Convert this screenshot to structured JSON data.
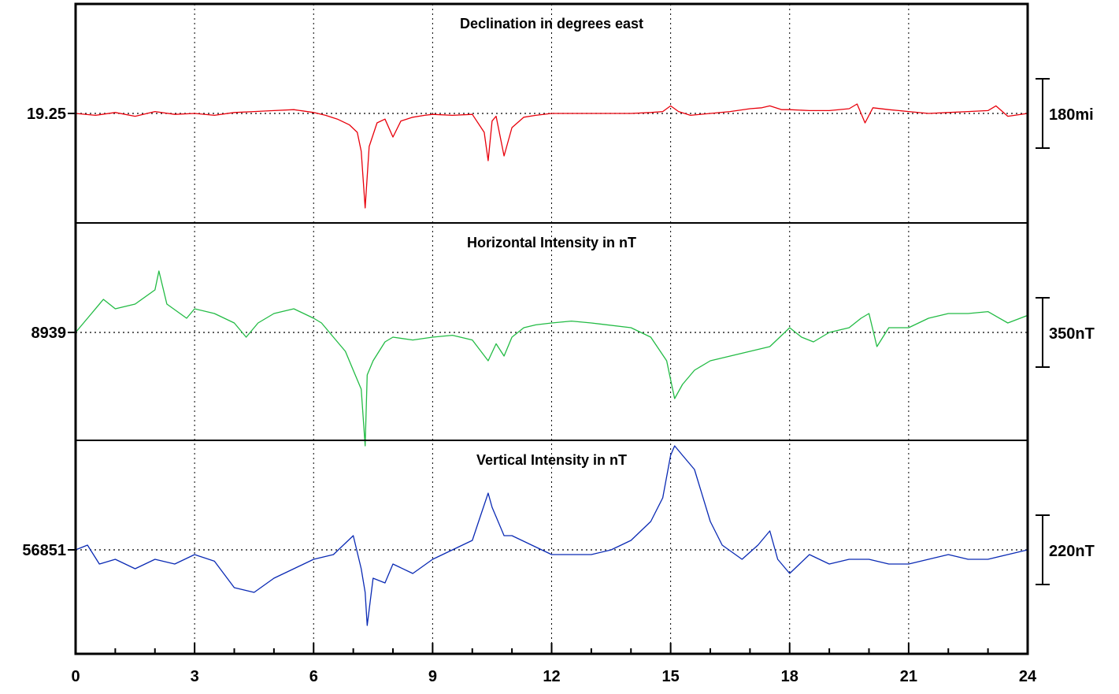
{
  "chart_data": [
    {
      "type": "line",
      "title": "Declination in degrees east",
      "baseline_label": "19.25",
      "scale_bar_label": "180mi",
      "color": "#e8000b",
      "series": [
        {
          "x": [
            0,
            0.5,
            1,
            1.5,
            2,
            2.5,
            3,
            3.5,
            4,
            4.5,
            5,
            5.5,
            6,
            6.3,
            6.6,
            6.9,
            7.1,
            7.2,
            7.3,
            7.4,
            7.6,
            7.8,
            8,
            8.2,
            8.5,
            8.8,
            9,
            9.5,
            10,
            10.3,
            10.4,
            10.5,
            10.6,
            10.8,
            11,
            11.3,
            11.6,
            12,
            13,
            14,
            14.5,
            14.8,
            15,
            15.2,
            15.5,
            16,
            16.5,
            17,
            17.3,
            17.5,
            17.8,
            18,
            18.5,
            19,
            19.5,
            19.7,
            19.9,
            20.1,
            20.5,
            21,
            21.5,
            22,
            22.5,
            23,
            23.2,
            23.5,
            24
          ],
          "y": [
            0,
            -2,
            1,
            -3,
            2,
            -1,
            0,
            -2,
            1,
            2,
            3,
            4,
            1,
            -2,
            -6,
            -12,
            -20,
            -40,
            -100,
            -35,
            -10,
            -6,
            -25,
            -8,
            -4,
            -2,
            -1,
            -2,
            -1,
            -20,
            -50,
            -8,
            -3,
            -45,
            -15,
            -4,
            -2,
            0,
            0,
            0,
            1,
            2,
            8,
            2,
            -2,
            0,
            2,
            5,
            6,
            8,
            4,
            4,
            3,
            3,
            5,
            10,
            -10,
            6,
            4,
            2,
            0,
            1,
            2,
            3,
            8,
            -3,
            0
          ]
        }
      ]
    },
    {
      "type": "line",
      "title": "Horizontal Intensity in nT",
      "baseline_label": "8939",
      "scale_bar_label": "350nT",
      "color": "#22bb44",
      "series": [
        {
          "x": [
            0,
            0.4,
            0.7,
            1,
            1.5,
            2,
            2.1,
            2.3,
            2.8,
            3,
            3.5,
            4,
            4.3,
            4.6,
            5,
            5.5,
            6,
            6.2,
            6.5,
            6.8,
            7,
            7.2,
            7.3,
            7.35,
            7.5,
            7.8,
            8,
            8.5,
            9,
            9.5,
            10,
            10.4,
            10.6,
            10.8,
            11,
            11.3,
            11.6,
            12,
            12.5,
            13,
            14,
            14.5,
            14.9,
            15,
            15.1,
            15.3,
            15.6,
            16,
            16.5,
            17,
            17.5,
            18,
            18.3,
            18.6,
            19,
            19.5,
            19.8,
            20,
            20.2,
            20.5,
            21,
            21.5,
            22,
            22.5,
            23,
            23.5,
            24
          ],
          "y": [
            0,
            20,
            35,
            25,
            30,
            45,
            65,
            30,
            15,
            25,
            20,
            10,
            -5,
            10,
            20,
            25,
            15,
            10,
            -5,
            -20,
            -40,
            -60,
            -120,
            -45,
            -30,
            -10,
            -5,
            -8,
            -5,
            -3,
            -8,
            -30,
            -12,
            -25,
            -5,
            5,
            8,
            10,
            12,
            10,
            5,
            -5,
            -30,
            -50,
            -70,
            -55,
            -40,
            -30,
            -25,
            -20,
            -15,
            5,
            -5,
            -10,
            0,
            5,
            15,
            20,
            -15,
            5,
            5,
            15,
            20,
            20,
            22,
            10,
            18
          ]
        }
      ]
    },
    {
      "type": "line",
      "title": "Vertical Intensity in nT",
      "baseline_label": "56851",
      "scale_bar_label": "220nT",
      "color": "#0a2ab4",
      "series": [
        {
          "x": [
            0,
            0.3,
            0.6,
            1,
            1.5,
            2,
            2.5,
            3,
            3.5,
            4,
            4.5,
            5,
            5.5,
            6,
            6.5,
            7,
            7.2,
            7.3,
            7.35,
            7.5,
            7.8,
            8,
            8.5,
            9,
            9.5,
            10,
            10.2,
            10.4,
            10.5,
            10.6,
            10.8,
            11,
            11.5,
            12,
            12.5,
            13,
            13.5,
            14,
            14.5,
            14.8,
            15,
            15.1,
            15.3,
            15.6,
            16,
            16.3,
            16.8,
            17.2,
            17.5,
            17.7,
            18,
            18.5,
            19,
            19.5,
            20,
            20.5,
            21,
            21.5,
            22,
            22.5,
            23,
            23.5,
            24
          ],
          "y": [
            0,
            5,
            -15,
            -10,
            -20,
            -10,
            -15,
            -5,
            -12,
            -40,
            -45,
            -30,
            -20,
            -10,
            -5,
            15,
            -20,
            -45,
            -80,
            -30,
            -35,
            -15,
            -25,
            -10,
            0,
            10,
            35,
            60,
            45,
            35,
            15,
            15,
            5,
            -5,
            -5,
            -5,
            0,
            10,
            30,
            55,
            100,
            110,
            100,
            85,
            30,
            5,
            -10,
            5,
            20,
            -10,
            -25,
            -5,
            -15,
            -10,
            -10,
            -15,
            -15,
            -10,
            -5,
            -10,
            -10,
            -5,
            0
          ]
        }
      ]
    }
  ],
  "x_axis": {
    "range": [
      0,
      24
    ],
    "tick_labels": [
      "0",
      "3",
      "6",
      "9",
      "12",
      "15",
      "18",
      "21",
      "24"
    ]
  },
  "grid": true
}
